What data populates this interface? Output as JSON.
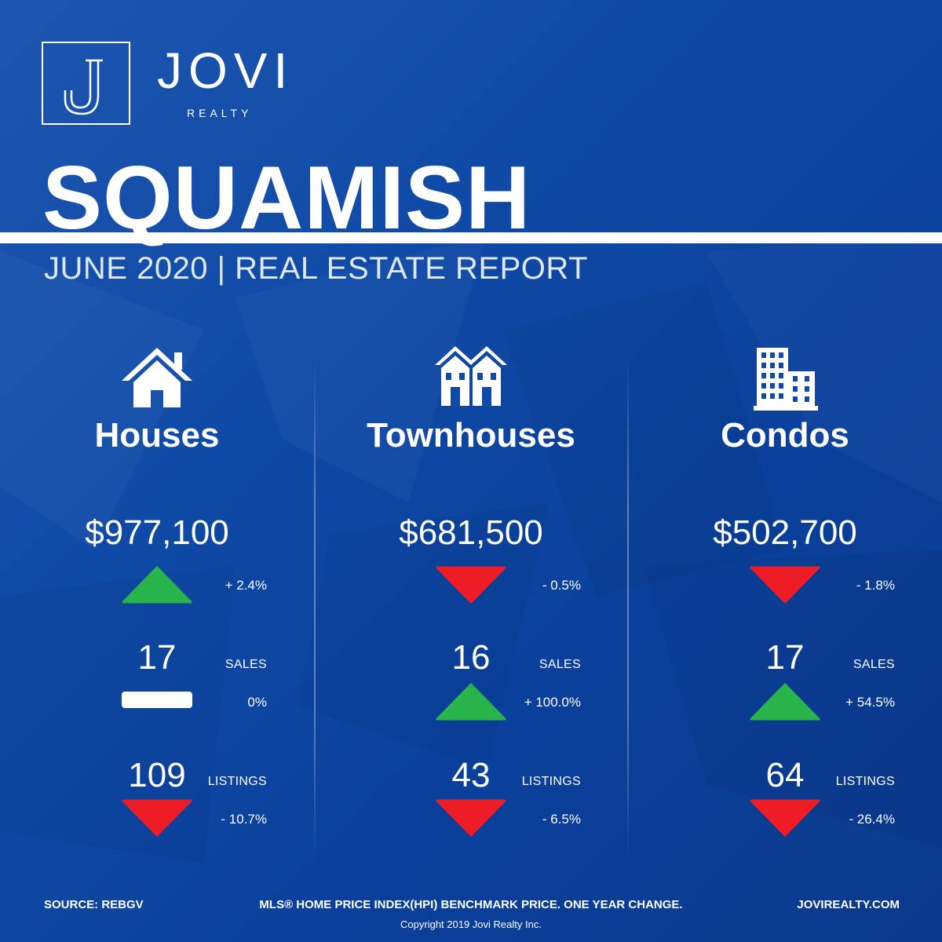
{
  "brand": {
    "name": "JOVI",
    "sub": "REALTY",
    "logo_letter": "J"
  },
  "header": {
    "city": "SQUAMISH",
    "subtitle": "JUNE 2020 | REAL ESTATE REPORT"
  },
  "colors": {
    "background": "#0f4aa6",
    "up": "#28b34b",
    "down": "#ee1c24",
    "flat": "#ffffff"
  },
  "categories": [
    {
      "name": "Houses",
      "icon": "house-icon",
      "price": "$977,100",
      "price_change": "+ 2.4%",
      "price_trend": "up",
      "sales": "17",
      "sales_label": "SALES",
      "sales_change": "0%",
      "sales_trend": "flat",
      "listings": "109",
      "listings_label": "LISTINGS",
      "listings_change": "- 10.7%",
      "listings_trend": "down"
    },
    {
      "name": "Townhouses",
      "icon": "townhouse-icon",
      "price": "$681,500",
      "price_change": "- 0.5%",
      "price_trend": "down",
      "sales": "16",
      "sales_label": "SALES",
      "sales_change": "+ 100.0%",
      "sales_trend": "up",
      "listings": "43",
      "listings_label": "LISTINGS",
      "listings_change": "- 6.5%",
      "listings_trend": "down"
    },
    {
      "name": "Condos",
      "icon": "condo-building-icon",
      "price": "$502,700",
      "price_change": "- 1.8%",
      "price_trend": "down",
      "sales": "17",
      "sales_label": "SALES",
      "sales_change": "+ 54.5%",
      "sales_trend": "up",
      "listings": "64",
      "listings_label": "LISTINGS",
      "listings_change": "- 26.4%",
      "listings_trend": "down"
    }
  ],
  "footer": {
    "source": "SOURCE:  REBGV",
    "note": "MLS® HOME PRICE INDEX(HPI) BENCHMARK PRICE. ONE YEAR CHANGE.",
    "website": "JOVIREALTY.COM",
    "copyright": "Copyright 2019 Jovi Realty Inc."
  }
}
